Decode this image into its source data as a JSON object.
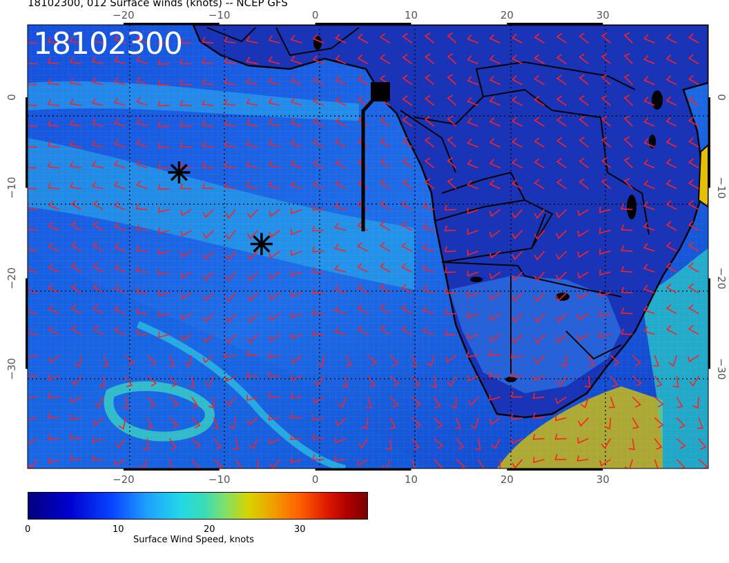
{
  "title": "18102300, 012 Surface winds (knots) -- NCEP GFS",
  "stamp": "18102300",
  "axes": {
    "lon_ticks": [
      "-20",
      "-10",
      "0",
      "10",
      "20",
      "30"
    ],
    "lat_ticks": [
      "0",
      "-10",
      "-20",
      "-30"
    ],
    "lon_range": [
      -30,
      41
    ],
    "lat_range": [
      -41,
      8
    ]
  },
  "colorbar": {
    "title": "Surface Wind Speed, knots",
    "ticks": [
      "0",
      "10",
      "20",
      "30"
    ],
    "range": [
      0,
      37
    ]
  },
  "markers": [
    {
      "type": "asterisk",
      "name": "marker-1",
      "lon": -14.2,
      "lat": -8.3
    },
    {
      "type": "asterisk",
      "name": "marker-2",
      "lon": -5.6,
      "lat": -16.2
    }
  ],
  "track": {
    "name": "flight-track",
    "points": [
      [
        5.0,
        -14.8
      ],
      [
        5.0,
        -1.5
      ],
      [
        6.8,
        0.6
      ]
    ]
  },
  "colors": {
    "barb": "#ff2020",
    "coast": "#000000",
    "ocean_dark": "#0818b8",
    "ocean_mid": "#1e64e6",
    "speed_high": "#e6d000"
  }
}
